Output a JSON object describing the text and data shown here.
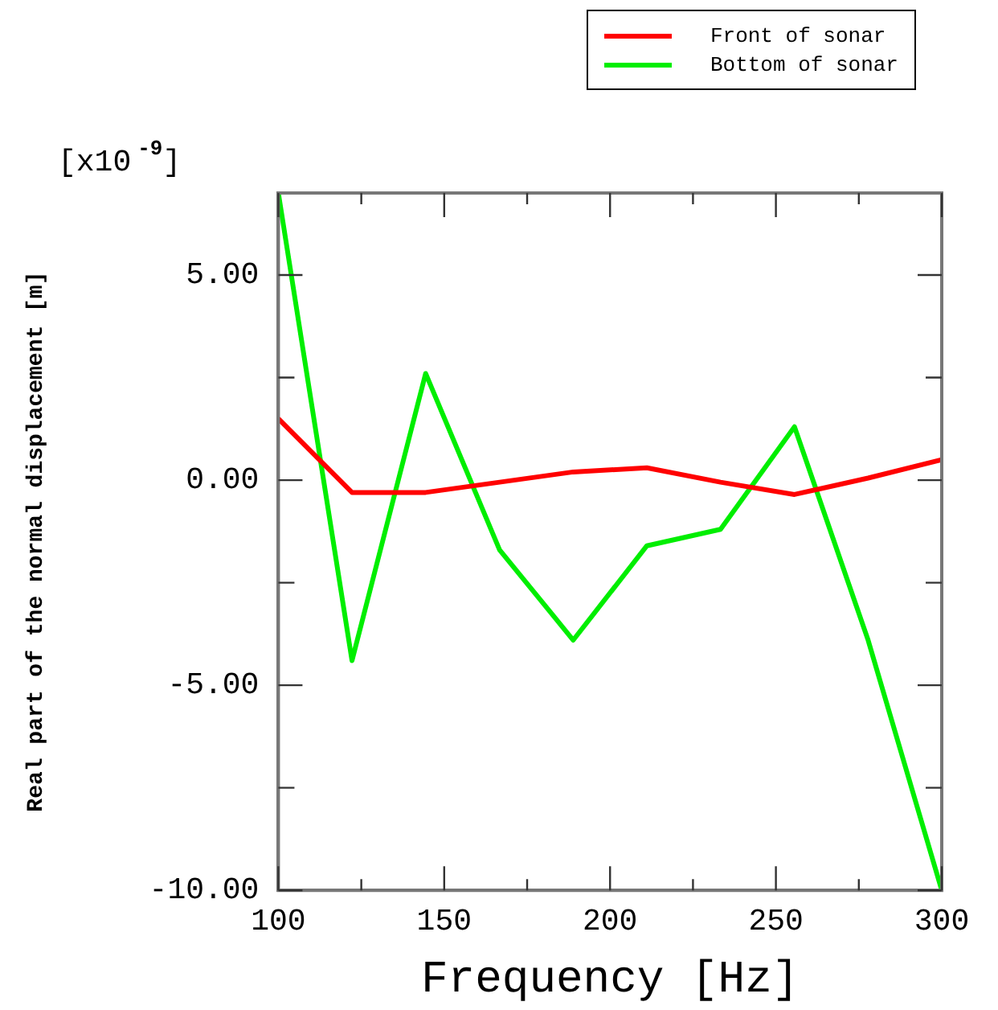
{
  "chart_data": {
    "type": "line",
    "xlabel": "Frequency [Hz]",
    "ylabel": "Real part of the normal displacement [m]",
    "annotations": [
      "[x10$^{-9}$]"
    ],
    "x": [
      100,
      122.2,
      144.4,
      166.7,
      188.9,
      211.1,
      233.3,
      255.6,
      277.8,
      300
    ],
    "series": [
      {
        "name": "Front of sonar",
        "color": "#ff0000",
        "values": [
          1.5,
          -0.3,
          -0.3,
          -0.05,
          0.2,
          0.3,
          -0.05,
          -0.35,
          0.05,
          0.5
        ]
      },
      {
        "name": "Bottom of sonar",
        "color": "#00ee00",
        "values": [
          7.0,
          -4.4,
          2.6,
          -1.7,
          -3.9,
          -1.6,
          -1.2,
          1.3,
          -3.9,
          -10.0
        ]
      }
    ],
    "xlim": [
      100,
      300
    ],
    "xticks": [
      100,
      {
        "value": 125,
        "label": null
      },
      150,
      {
        "value": 175,
        "label": null
      },
      200,
      {
        "value": 225,
        "label": null
      },
      250,
      {
        "value": 275,
        "label": null
      },
      300
    ],
    "ylim": [
      -10,
      7
    ],
    "yticks": [
      {
        "value": -10,
        "label": "-10.00"
      },
      {
        "value": -7.5,
        "label": null
      },
      {
        "value": -5,
        "label": "-5.00"
      },
      {
        "value": -2.5,
        "label": null
      },
      {
        "value": 0,
        "label": "0.00"
      },
      {
        "value": 2.5,
        "label": null
      },
      {
        "value": 5,
        "label": "5.00"
      }
    ],
    "grid": false,
    "legend": "top right",
    "marker": "none",
    "line_style": "solid"
  }
}
